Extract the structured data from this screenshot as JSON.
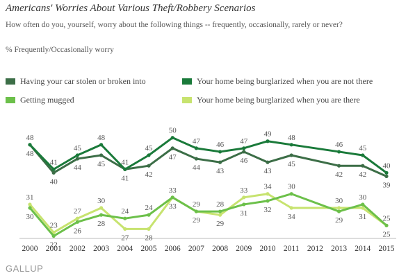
{
  "title": "Americans' Worries About Various Theft/Robbery Scenarios",
  "subtitle": "How often do you, yourself, worry about the following things -- frequently, occasionally, rarely or never?",
  "note": "% Frequently/Occasionally worry",
  "logo": "GALLUP",
  "chart_data": {
    "type": "line",
    "x": [
      "2000",
      "2001",
      "2002",
      "2003",
      "2004",
      "2005",
      "2006",
      "2007",
      "2008",
      "2009",
      "2010",
      "2011",
      "2013",
      "2014",
      "2015"
    ],
    "tick_labels": [
      "2000",
      "2001",
      "2002",
      "2003",
      "2004",
      "2005",
      "2006",
      "2007",
      "2008",
      "2009",
      "2010",
      "2011",
      "2012",
      "2013",
      "2014",
      "2015"
    ],
    "ylim": [
      15,
      60
    ],
    "grid": false,
    "legend_position": "top",
    "series": [
      {
        "name": "Having your car stolen or broken into",
        "color": "#3c6e47",
        "values": [
          48,
          40,
          44,
          45,
          41,
          42,
          47,
          44,
          43,
          46,
          43,
          45,
          42,
          42,
          39
        ]
      },
      {
        "name": "Your home being burglarized when you are not there",
        "color": "#1a7a3a",
        "values": [
          48,
          41,
          45,
          48,
          41,
          45,
          50,
          47,
          46,
          47,
          49,
          48,
          46,
          45,
          40
        ]
      },
      {
        "name": "Getting mugged",
        "color": "#6cc04a",
        "values": [
          30,
          22,
          26,
          28,
          27,
          28,
          33,
          29,
          29,
          31,
          32,
          34,
          29,
          31,
          25
        ]
      },
      {
        "name": "Your home being burglarized when you are there",
        "color": "#c7e36f",
        "values": [
          31,
          23,
          27,
          30,
          24,
          24,
          33,
          29,
          28,
          33,
          34,
          30,
          30,
          30,
          25
        ]
      }
    ]
  }
}
